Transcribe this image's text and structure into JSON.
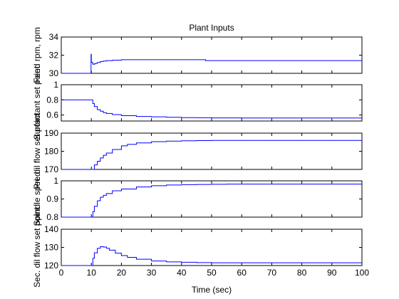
{
  "figure": {
    "title": "Plant Inputs",
    "xlabel": "Time (sec)"
  },
  "chart_data": [
    {
      "type": "line",
      "ylabel": "Feed rpm, rpm",
      "xlim": [
        0,
        100
      ],
      "ylim": [
        30,
        34
      ],
      "yticks": [
        30,
        32,
        34
      ],
      "grid": false,
      "series": [
        {
          "color": "#0000ff",
          "x": [
            0,
            9.9,
            9.9,
            10,
            10,
            10.5,
            10.5,
            11,
            11.5,
            12,
            13,
            14,
            15,
            17,
            20,
            25,
            30,
            35,
            40,
            48,
            48,
            55,
            60,
            70,
            80,
            90,
            100
          ],
          "y": [
            30,
            30,
            32.1,
            32.1,
            31.2,
            31.2,
            31.0,
            31.05,
            31.1,
            31.2,
            31.3,
            31.35,
            31.4,
            31.45,
            31.5,
            31.5,
            31.5,
            31.5,
            31.5,
            31.5,
            31.4,
            31.4,
            31.4,
            31.4,
            31.4,
            31.4,
            31.4
          ]
        }
      ]
    },
    {
      "type": "line",
      "ylabel": "Surfactant set point",
      "xlim": [
        0,
        100
      ],
      "ylim": [
        0.52,
        1
      ],
      "yticks": [
        0.6,
        0.8,
        1
      ],
      "grid": false,
      "series": [
        {
          "color": "#0000ff",
          "x": [
            0,
            10,
            10.5,
            11,
            12,
            13,
            14,
            15,
            17,
            20,
            25,
            30,
            35,
            40,
            45,
            50,
            60,
            70,
            80,
            90,
            100
          ],
          "y": [
            0.8,
            0.8,
            0.75,
            0.71,
            0.67,
            0.65,
            0.63,
            0.62,
            0.605,
            0.59,
            0.58,
            0.575,
            0.57,
            0.565,
            0.563,
            0.561,
            0.56,
            0.56,
            0.56,
            0.56,
            0.56
          ]
        }
      ]
    },
    {
      "type": "line",
      "ylabel": "Pri. dil flow set point",
      "xlim": [
        0,
        100
      ],
      "ylim": [
        170,
        190
      ],
      "yticks": [
        170,
        180,
        190
      ],
      "grid": false,
      "series": [
        {
          "color": "#0000ff",
          "x": [
            0,
            10,
            11,
            12,
            13,
            14,
            15,
            17,
            20,
            22,
            25,
            30,
            35,
            40,
            45,
            50,
            55,
            60,
            70,
            80,
            90,
            100
          ],
          "y": [
            170,
            170,
            172.5,
            174.5,
            176.3,
            177.8,
            179,
            181,
            183,
            183.8,
            184.6,
            185.3,
            185.6,
            185.8,
            185.9,
            186,
            186,
            186,
            186,
            186,
            186,
            186
          ]
        }
      ]
    },
    {
      "type": "line",
      "ylabel": "Spindle speed",
      "xlim": [
        0,
        100
      ],
      "ylim": [
        0.8,
        1
      ],
      "yticks": [
        0.8,
        0.9,
        1
      ],
      "grid": false,
      "series": [
        {
          "color": "#0000ff",
          "x": [
            0,
            10,
            10.5,
            11,
            12,
            13,
            14,
            15,
            17,
            20,
            25,
            30,
            35,
            40,
            45,
            50,
            55,
            60,
            70,
            80,
            90,
            100
          ],
          "y": [
            0.8,
            0.8,
            0.83,
            0.86,
            0.89,
            0.91,
            0.92,
            0.93,
            0.945,
            0.955,
            0.966,
            0.973,
            0.977,
            0.979,
            0.98,
            0.981,
            0.982,
            0.982,
            0.982,
            0.982,
            0.982,
            0.982
          ]
        }
      ]
    },
    {
      "type": "line",
      "ylabel": "Sec. dil flow set point",
      "xlim": [
        0,
        100
      ],
      "ylim": [
        120,
        140
      ],
      "yticks": [
        120,
        130,
        140
      ],
      "grid": false,
      "series": [
        {
          "color": "#0000ff",
          "x": [
            0,
            10,
            10.5,
            11,
            12,
            13,
            14,
            15,
            16,
            18,
            20,
            22,
            25,
            30,
            35,
            40,
            45,
            50,
            55,
            60,
            70,
            80,
            90,
            100
          ],
          "y": [
            120,
            120,
            124,
            127,
            129.5,
            130.4,
            130.2,
            129.5,
            128.5,
            126.8,
            125.5,
            124.5,
            123.5,
            122.5,
            122,
            121.8,
            121.6,
            121.5,
            121.5,
            121.5,
            121.5,
            121.5,
            121.5,
            121.5
          ]
        }
      ]
    }
  ]
}
